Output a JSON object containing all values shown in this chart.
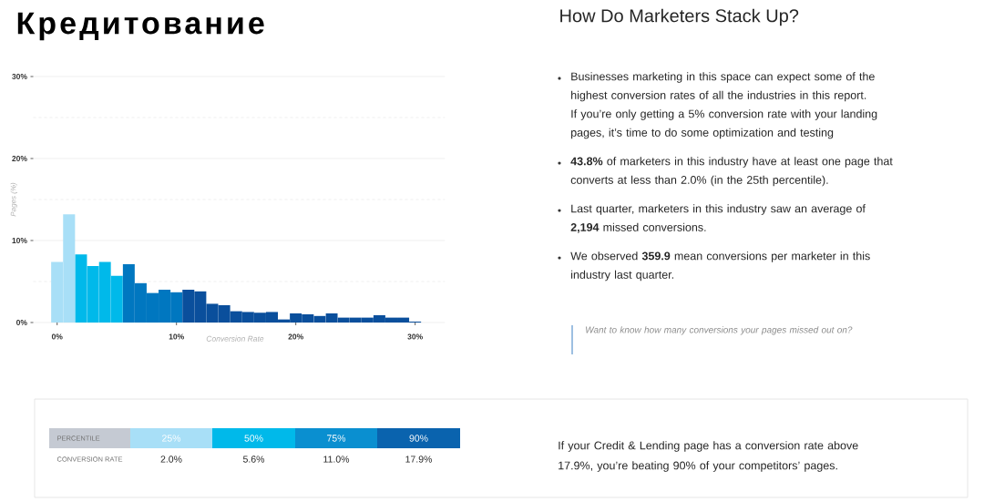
{
  "chart_data": {
    "type": "histogram",
    "title": "Кредитование",
    "subtitle": "How Do Marketers Stack Up?",
    "xlabel": "Conversion Rate",
    "ylabel": "Pages (%)",
    "bins": [
      -0.5,
      0.5,
      1.5,
      2.5,
      3.5,
      4.5,
      5.5,
      6.5,
      7.5,
      8.5,
      9.5,
      10.5,
      11.5,
      12.5,
      13.5,
      14.5,
      15.5,
      16.5,
      17.5,
      18.5,
      19.5,
      20.5,
      21.5,
      22.5,
      23.5,
      24.5,
      25.5,
      26.5,
      27.5,
      28.5,
      29.5,
      30.5
    ],
    "values": [
      7.4,
      13.2,
      8.3,
      6.9,
      7.4,
      5.7,
      7.1,
      4.8,
      3.6,
      4.0,
      3.7,
      4.0,
      3.8,
      2.3,
      2.1,
      1.4,
      1.3,
      1.2,
      1.3,
      0.4,
      1.1,
      1.0,
      0.8,
      1.1,
      0.6,
      0.6,
      0.6,
      0.9,
      0.6,
      0.6,
      0.1
    ],
    "colors": [
      "#a8dff7",
      "#a8dff7",
      "#00b9ea",
      "#00b9ea",
      "#00b9ea",
      "#00b9ea",
      "#0077c0",
      "#0077c0",
      "#0077c0",
      "#0077c0",
      "#0077c0",
      "#0a4f9c",
      "#0a4f9c",
      "#0a4f9c",
      "#0a4f9c",
      "#0a4f9c",
      "#0a4f9c",
      "#0a4f9c",
      "#0a4f9c",
      "#0a4f9c",
      "#0a4f9c",
      "#0a4f9c",
      "#0a4f9c",
      "#0a4f9c",
      "#0a4f9c",
      "#0a4f9c",
      "#0a4f9c",
      "#0a4f9c",
      "#0a4f9c",
      "#0a4f9c",
      "#0a4f9c"
    ],
    "xlim": [
      -2,
      32.5
    ],
    "ylim": [
      0,
      30
    ],
    "xticks": [
      {
        "value": 0,
        "label": "0%"
      },
      {
        "value": 10,
        "label": "10%"
      },
      {
        "value": 20,
        "label": "20%"
      },
      {
        "value": 30,
        "label": "30%"
      }
    ],
    "yticks": [
      {
        "value": 0,
        "label": "0%"
      },
      {
        "value": 10,
        "label": "10%"
      },
      {
        "value": 20,
        "label": "20%"
      },
      {
        "value": 30,
        "label": "30%"
      }
    ],
    "grid": "y",
    "annotations": [
      "Businesses marketing in this space can expect some of the highest conversion rates of all the industries in this report. If you’re only getting a 5% conversion rate with your landing pages, it’s time to do some optimization and testing",
      "**43.8%** of marketers in this industry have at least one page that converts at less than 2.0% (in the 25th percentile).",
      "Last quarter, marketers in this industry saw an average of **2,194** missed conversions.",
      "We observed **359.9** mean conversions per marketer in this industry last quarter.",
      "Want to know how many conversions your pages missed out on?",
      "PERCENTILE",
      "CONVERSION RATE",
      "25%",
      "50%",
      "75%",
      "90%",
      "2.0%",
      "5.6%",
      "11.0%",
      "17.9%",
      "If your Credit & Lending page has a conversion rate above 17.9%, you’re beating 90% of your competitors’ pages."
    ]
  }
}
